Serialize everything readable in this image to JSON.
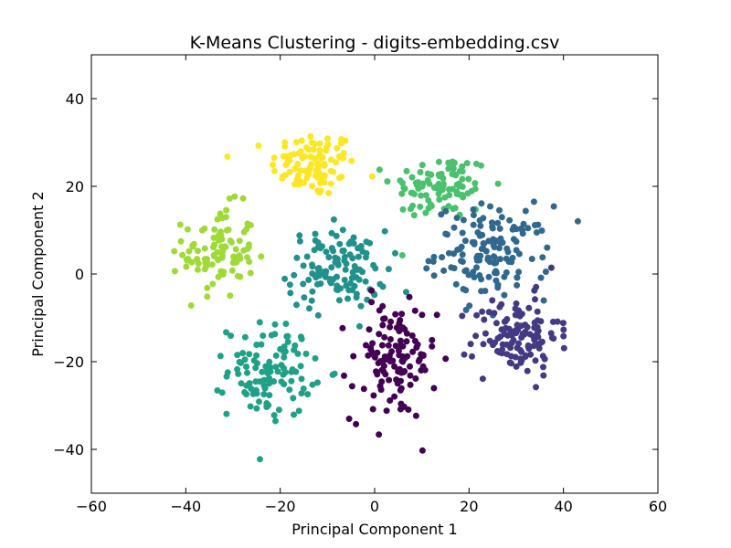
{
  "chart_data": {
    "type": "scatter",
    "title": "K-Means Clustering - digits-embedding.csv",
    "xlabel": "Principal Component 1",
    "ylabel": "Principal Component 2",
    "xlim": [
      -60,
      60
    ],
    "ylim": [
      -50,
      50
    ],
    "xticks": [
      -60,
      -40,
      -20,
      0,
      20,
      40,
      60
    ],
    "yticks": [
      -40,
      -20,
      0,
      20,
      40
    ],
    "grid": false,
    "legend": "none",
    "clusters": [
      {
        "color": "#fde725",
        "center": [
          -13,
          25
        ],
        "spread": [
          6,
          5
        ],
        "count": 100
      },
      {
        "color": "#5ec962",
        "center": [
          -5,
          22
        ],
        "spread": [
          0,
          0
        ],
        "count": 0
      },
      {
        "color": "#4ac16d",
        "center": [
          14,
          20
        ],
        "spread": [
          7,
          5
        ],
        "count": 95
      },
      {
        "color": "#a0da39",
        "center": [
          -33,
          5
        ],
        "spread": [
          5,
          7
        ],
        "count": 95
      },
      {
        "color": "#21918c",
        "center": [
          -8,
          1
        ],
        "spread": [
          7,
          6
        ],
        "count": 120
      },
      {
        "color": "#31688e",
        "center": [
          25,
          5
        ],
        "spread": [
          8,
          7
        ],
        "count": 140
      },
      {
        "color": "#1fa187",
        "center": [
          -22,
          -22
        ],
        "spread": [
          6,
          7
        ],
        "count": 110
      },
      {
        "color": "#440154",
        "center": [
          4,
          -20
        ],
        "spread": [
          6,
          9
        ],
        "count": 120
      },
      {
        "color": "#443a83",
        "center": [
          30,
          -14
        ],
        "spread": [
          6,
          6
        ],
        "count": 120
      }
    ]
  }
}
